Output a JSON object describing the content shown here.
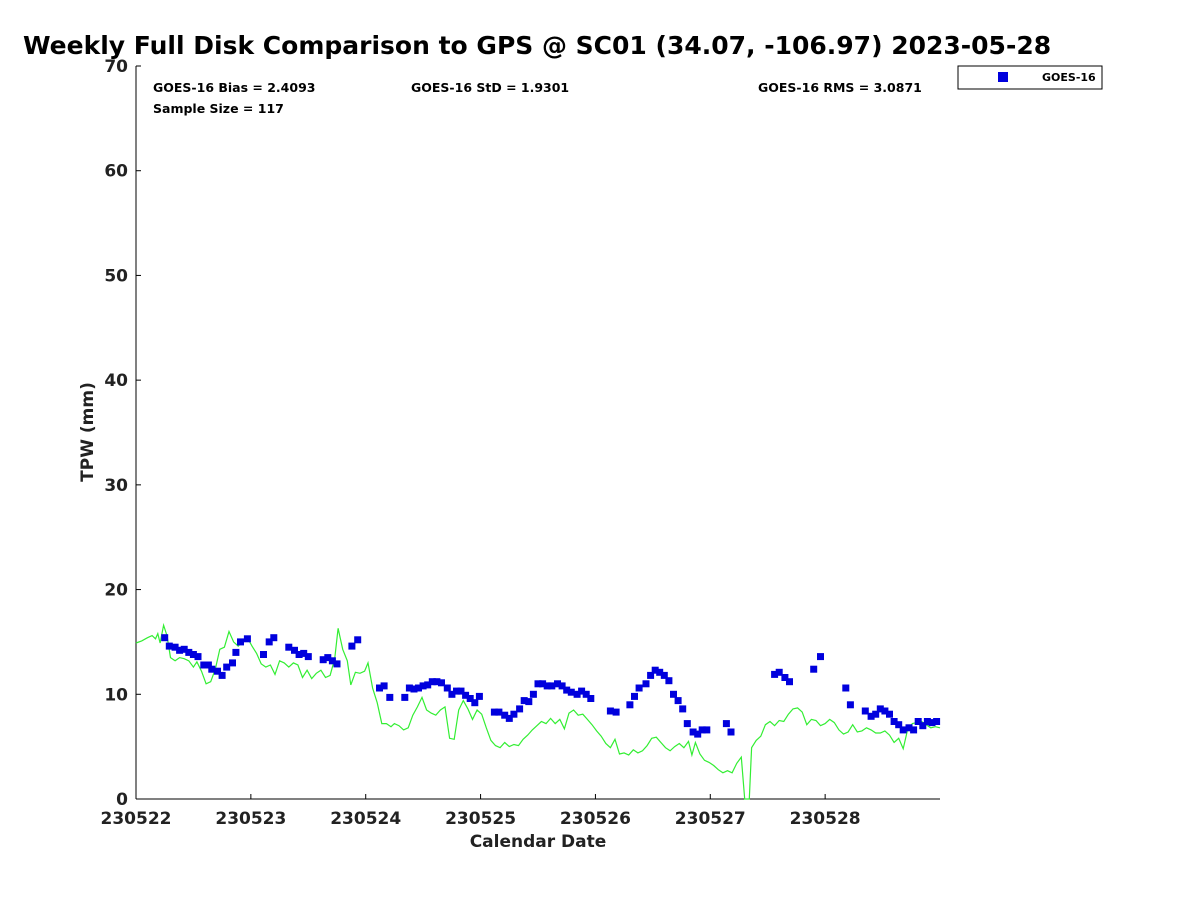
{
  "chart_data": {
    "type": "scatter",
    "title": "Weekly Full Disk Comparison to GPS @ SC01 (34.07, -106.97) 2023-05-28",
    "xlabel": "Calendar Date",
    "ylabel": "TPW (mm)",
    "xlim": [
      0,
      7
    ],
    "ylim": [
      0,
      70
    ],
    "x_tick_labels": [
      "230522",
      "230523",
      "230524",
      "230525",
      "230526",
      "230527",
      "230528"
    ],
    "x_tick_positions": [
      0,
      1,
      2,
      3,
      4,
      5,
      6
    ],
    "y_ticks": [
      0,
      10,
      20,
      30,
      40,
      50,
      60,
      70
    ],
    "grid": false,
    "legend": {
      "placement": "top-right",
      "entries": [
        "GOES-16"
      ]
    },
    "stats": {
      "bias": "GOES-16 Bias = 2.4093",
      "std": "GOES-16 StD = 1.9301",
      "rms": "GOES-16 RMS = 3.0871",
      "sample_size": "Sample Size = 117"
    },
    "colors": {
      "goes": "#0000dd",
      "gps": "#33ee33"
    },
    "series": [
      {
        "name": "GOES-16",
        "marker": "square",
        "points": [
          [
            0.25,
            15.4
          ],
          [
            0.29,
            14.6
          ],
          [
            0.34,
            14.5
          ],
          [
            0.38,
            14.2
          ],
          [
            0.42,
            14.3
          ],
          [
            0.46,
            14.0
          ],
          [
            0.5,
            13.8
          ],
          [
            0.54,
            13.6
          ],
          [
            0.59,
            12.8
          ],
          [
            0.63,
            12.8
          ],
          [
            0.66,
            12.4
          ],
          [
            0.71,
            12.2
          ],
          [
            0.75,
            11.8
          ],
          [
            0.79,
            12.6
          ],
          [
            0.84,
            13.0
          ],
          [
            0.87,
            14.0
          ],
          [
            0.91,
            15.0
          ],
          [
            0.97,
            15.3
          ],
          [
            1.11,
            13.8
          ],
          [
            1.16,
            15.0
          ],
          [
            1.2,
            15.4
          ],
          [
            1.33,
            14.5
          ],
          [
            1.38,
            14.2
          ],
          [
            1.42,
            13.8
          ],
          [
            1.46,
            13.9
          ],
          [
            1.5,
            13.6
          ],
          [
            1.63,
            13.3
          ],
          [
            1.67,
            13.5
          ],
          [
            1.71,
            13.2
          ],
          [
            1.75,
            12.9
          ],
          [
            1.88,
            14.6
          ],
          [
            1.93,
            15.2
          ],
          [
            2.12,
            10.6
          ],
          [
            2.16,
            10.8
          ],
          [
            2.21,
            9.7
          ],
          [
            2.34,
            9.7
          ],
          [
            2.38,
            10.6
          ],
          [
            2.42,
            10.5
          ],
          [
            2.46,
            10.6
          ],
          [
            2.5,
            10.8
          ],
          [
            2.54,
            10.9
          ],
          [
            2.58,
            11.2
          ],
          [
            2.62,
            11.2
          ],
          [
            2.66,
            11.1
          ],
          [
            2.71,
            10.6
          ],
          [
            2.75,
            10.0
          ],
          [
            2.79,
            10.3
          ],
          [
            2.83,
            10.3
          ],
          [
            2.87,
            9.9
          ],
          [
            2.91,
            9.6
          ],
          [
            2.95,
            9.2
          ],
          [
            2.99,
            9.8
          ],
          [
            3.12,
            8.3
          ],
          [
            3.16,
            8.3
          ],
          [
            3.21,
            8.0
          ],
          [
            3.25,
            7.7
          ],
          [
            3.29,
            8.1
          ],
          [
            3.34,
            8.6
          ],
          [
            3.38,
            9.4
          ],
          [
            3.42,
            9.3
          ],
          [
            3.46,
            10.0
          ],
          [
            3.5,
            11.0
          ],
          [
            3.54,
            11.0
          ],
          [
            3.58,
            10.8
          ],
          [
            3.62,
            10.8
          ],
          [
            3.67,
            11.0
          ],
          [
            3.71,
            10.8
          ],
          [
            3.75,
            10.4
          ],
          [
            3.79,
            10.2
          ],
          [
            3.84,
            10.0
          ],
          [
            3.88,
            10.3
          ],
          [
            3.92,
            10.0
          ],
          [
            3.96,
            9.6
          ],
          [
            4.13,
            8.4
          ],
          [
            4.18,
            8.3
          ],
          [
            4.3,
            9.0
          ],
          [
            4.34,
            9.8
          ],
          [
            4.38,
            10.6
          ],
          [
            4.44,
            11.0
          ],
          [
            4.48,
            11.8
          ],
          [
            4.52,
            12.3
          ],
          [
            4.56,
            12.1
          ],
          [
            4.6,
            11.8
          ],
          [
            4.64,
            11.3
          ],
          [
            4.68,
            10.0
          ],
          [
            4.72,
            9.4
          ],
          [
            4.76,
            8.6
          ],
          [
            4.8,
            7.2
          ],
          [
            4.85,
            6.4
          ],
          [
            4.89,
            6.2
          ],
          [
            4.93,
            6.6
          ],
          [
            4.97,
            6.6
          ],
          [
            5.14,
            7.2
          ],
          [
            5.18,
            6.4
          ],
          [
            5.56,
            11.9
          ],
          [
            5.6,
            12.1
          ],
          [
            5.65,
            11.6
          ],
          [
            5.69,
            11.2
          ],
          [
            5.9,
            12.4
          ],
          [
            5.96,
            13.6
          ],
          [
            6.18,
            10.6
          ],
          [
            6.22,
            9.0
          ],
          [
            6.35,
            8.4
          ],
          [
            6.4,
            7.9
          ],
          [
            6.44,
            8.1
          ],
          [
            6.48,
            8.6
          ],
          [
            6.52,
            8.4
          ],
          [
            6.56,
            8.1
          ],
          [
            6.6,
            7.4
          ],
          [
            6.64,
            7.1
          ],
          [
            6.68,
            6.6
          ],
          [
            6.73,
            6.8
          ],
          [
            6.77,
            6.6
          ],
          [
            6.81,
            7.4
          ],
          [
            6.85,
            7.0
          ],
          [
            6.89,
            7.4
          ],
          [
            6.93,
            7.3
          ],
          [
            6.97,
            7.4
          ]
        ]
      },
      {
        "name": "GPS",
        "marker": "line",
        "points": [
          [
            0.0,
            14.9
          ],
          [
            0.05,
            15.1
          ],
          [
            0.1,
            15.4
          ],
          [
            0.14,
            15.6
          ],
          [
            0.17,
            15.3
          ],
          [
            0.19,
            15.8
          ],
          [
            0.21,
            14.9
          ],
          [
            0.24,
            16.6
          ],
          [
            0.27,
            15.6
          ],
          [
            0.3,
            13.5
          ],
          [
            0.34,
            13.2
          ],
          [
            0.38,
            13.5
          ],
          [
            0.42,
            13.4
          ],
          [
            0.46,
            13.2
          ],
          [
            0.5,
            12.6
          ],
          [
            0.53,
            13.1
          ],
          [
            0.57,
            12.2
          ],
          [
            0.61,
            11.0
          ],
          [
            0.65,
            11.2
          ],
          [
            0.69,
            12.4
          ],
          [
            0.73,
            14.3
          ],
          [
            0.77,
            14.5
          ],
          [
            0.81,
            16.0
          ],
          [
            0.85,
            15.0
          ],
          [
            0.89,
            14.6
          ],
          [
            0.93,
            15.1
          ],
          [
            0.97,
            15.4
          ],
          [
            1.01,
            14.6
          ],
          [
            1.05,
            13.9
          ],
          [
            1.09,
            12.9
          ],
          [
            1.13,
            12.6
          ],
          [
            1.17,
            12.8
          ],
          [
            1.21,
            11.9
          ],
          [
            1.25,
            13.2
          ],
          [
            1.29,
            13.0
          ],
          [
            1.33,
            12.6
          ],
          [
            1.37,
            13.0
          ],
          [
            1.41,
            12.8
          ],
          [
            1.45,
            11.6
          ],
          [
            1.49,
            12.3
          ],
          [
            1.53,
            11.5
          ],
          [
            1.57,
            12.0
          ],
          [
            1.61,
            12.3
          ],
          [
            1.65,
            11.6
          ],
          [
            1.69,
            11.8
          ],
          [
            1.73,
            13.4
          ],
          [
            1.76,
            16.3
          ],
          [
            1.8,
            14.3
          ],
          [
            1.84,
            13.2
          ],
          [
            1.87,
            10.9
          ],
          [
            1.91,
            12.1
          ],
          [
            1.95,
            12.0
          ],
          [
            1.99,
            12.2
          ],
          [
            2.02,
            13.0
          ],
          [
            2.06,
            10.6
          ],
          [
            2.1,
            9.2
          ],
          [
            2.14,
            7.2
          ],
          [
            2.18,
            7.2
          ],
          [
            2.22,
            6.9
          ],
          [
            2.25,
            7.2
          ],
          [
            2.29,
            7.0
          ],
          [
            2.33,
            6.6
          ],
          [
            2.37,
            6.8
          ],
          [
            2.41,
            8.0
          ],
          [
            2.45,
            8.8
          ],
          [
            2.49,
            9.7
          ],
          [
            2.53,
            8.5
          ],
          [
            2.57,
            8.2
          ],
          [
            2.61,
            8.0
          ],
          [
            2.65,
            8.5
          ],
          [
            2.69,
            8.8
          ],
          [
            2.73,
            5.8
          ],
          [
            2.77,
            5.7
          ],
          [
            2.81,
            8.5
          ],
          [
            2.85,
            9.4
          ],
          [
            2.89,
            8.6
          ],
          [
            2.93,
            7.6
          ],
          [
            2.97,
            8.5
          ],
          [
            3.01,
            8.1
          ],
          [
            3.05,
            6.8
          ],
          [
            3.09,
            5.6
          ],
          [
            3.13,
            5.1
          ],
          [
            3.17,
            4.9
          ],
          [
            3.21,
            5.4
          ],
          [
            3.25,
            5.0
          ],
          [
            3.29,
            5.2
          ],
          [
            3.33,
            5.1
          ],
          [
            3.37,
            5.7
          ],
          [
            3.41,
            6.1
          ],
          [
            3.45,
            6.6
          ],
          [
            3.49,
            7.0
          ],
          [
            3.53,
            7.4
          ],
          [
            3.57,
            7.2
          ],
          [
            3.61,
            7.7
          ],
          [
            3.65,
            7.2
          ],
          [
            3.69,
            7.6
          ],
          [
            3.73,
            6.7
          ],
          [
            3.77,
            8.2
          ],
          [
            3.81,
            8.5
          ],
          [
            3.85,
            8.0
          ],
          [
            3.89,
            8.1
          ],
          [
            3.93,
            7.6
          ],
          [
            3.97,
            7.1
          ],
          [
            4.01,
            6.5
          ],
          [
            4.05,
            6.0
          ],
          [
            4.09,
            5.3
          ],
          [
            4.13,
            4.9
          ],
          [
            4.17,
            5.7
          ],
          [
            4.21,
            4.3
          ],
          [
            4.25,
            4.4
          ],
          [
            4.29,
            4.2
          ],
          [
            4.33,
            4.7
          ],
          [
            4.37,
            4.4
          ],
          [
            4.41,
            4.6
          ],
          [
            4.45,
            5.1
          ],
          [
            4.49,
            5.8
          ],
          [
            4.53,
            5.9
          ],
          [
            4.57,
            5.4
          ],
          [
            4.61,
            4.9
          ],
          [
            4.65,
            4.6
          ],
          [
            4.69,
            5.0
          ],
          [
            4.73,
            5.3
          ],
          [
            4.77,
            4.9
          ],
          [
            4.81,
            5.5
          ],
          [
            4.84,
            4.2
          ],
          [
            4.87,
            5.4
          ],
          [
            4.91,
            4.3
          ],
          [
            4.95,
            3.7
          ],
          [
            4.99,
            3.5
          ],
          [
            5.03,
            3.2
          ],
          [
            5.07,
            2.8
          ],
          [
            5.11,
            2.5
          ],
          [
            5.15,
            2.7
          ],
          [
            5.19,
            2.5
          ],
          [
            5.23,
            3.4
          ],
          [
            5.27,
            4.0
          ],
          [
            5.3,
            0.0
          ],
          [
            5.34,
            0.0
          ],
          [
            5.36,
            4.9
          ],
          [
            5.4,
            5.6
          ],
          [
            5.44,
            6.0
          ],
          [
            5.48,
            7.1
          ],
          [
            5.52,
            7.4
          ],
          [
            5.56,
            7.0
          ],
          [
            5.6,
            7.5
          ],
          [
            5.64,
            7.4
          ],
          [
            5.68,
            8.1
          ],
          [
            5.72,
            8.6
          ],
          [
            5.76,
            8.7
          ],
          [
            5.8,
            8.3
          ],
          [
            5.84,
            7.1
          ],
          [
            5.88,
            7.6
          ],
          [
            5.92,
            7.5
          ],
          [
            5.96,
            7.0
          ],
          [
            6.0,
            7.2
          ],
          [
            6.04,
            7.6
          ],
          [
            6.08,
            7.3
          ],
          [
            6.12,
            6.6
          ],
          [
            6.16,
            6.2
          ],
          [
            6.2,
            6.4
          ],
          [
            6.24,
            7.1
          ],
          [
            6.28,
            6.4
          ],
          [
            6.32,
            6.5
          ],
          [
            6.36,
            6.8
          ],
          [
            6.4,
            6.6
          ],
          [
            6.44,
            6.3
          ],
          [
            6.48,
            6.3
          ],
          [
            6.52,
            6.5
          ],
          [
            6.56,
            6.1
          ],
          [
            6.6,
            5.4
          ],
          [
            6.64,
            5.8
          ],
          [
            6.68,
            4.8
          ],
          [
            6.72,
            6.7
          ],
          [
            6.76,
            7.2
          ],
          [
            6.8,
            7.3
          ],
          [
            6.84,
            7.4
          ],
          [
            6.88,
            7.1
          ],
          [
            6.92,
            6.8
          ],
          [
            6.96,
            6.9
          ],
          [
            7.0,
            6.8
          ]
        ]
      }
    ]
  }
}
